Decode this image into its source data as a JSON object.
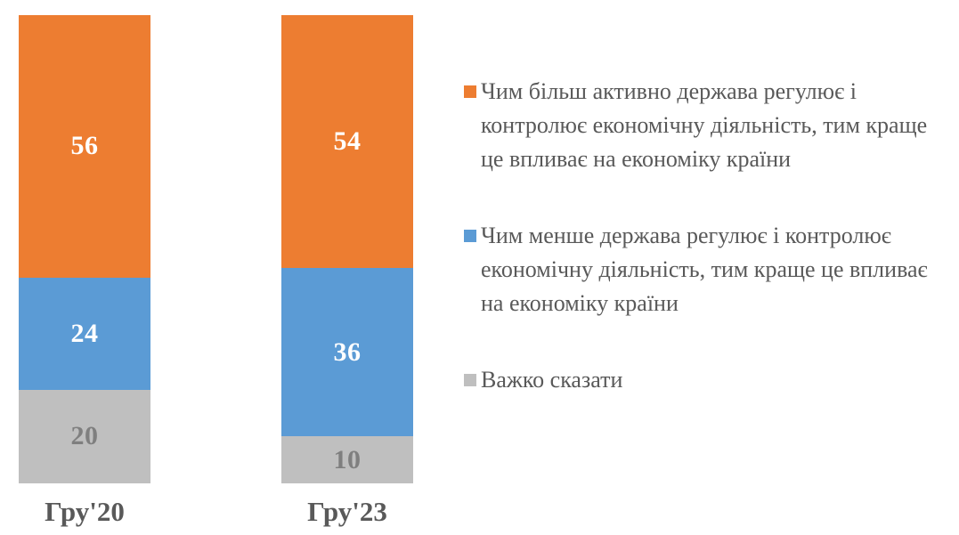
{
  "chart_data": {
    "type": "bar",
    "variant": "stacked-column",
    "title": "",
    "xlabel": "",
    "ylabel": "",
    "ylim": [
      0,
      100
    ],
    "grid": false,
    "axis_lines": false,
    "value_labels": true,
    "legend_position": "right",
    "categories": [
      "Гру'20",
      "Гру'23"
    ],
    "series": [
      {
        "name": "Чим більш активно держава регулює і контролює економічну діяльність, тим краще це впливає на економіку країни",
        "color": "#ED7D31",
        "label_color": "#FFFFFF",
        "values": [
          56,
          54
        ]
      },
      {
        "name": "Чим менше держава регулює і контролює економічну діяльність, тим краще це впливає на економіку країни",
        "color": "#5B9BD5",
        "label_color": "#FFFFFF",
        "values": [
          24,
          36
        ]
      },
      {
        "name": "Важко сказати",
        "color": "#BFBFBF",
        "label_color": "#7F7F7F",
        "values": [
          20,
          10
        ]
      }
    ]
  },
  "styles": {
    "background": "#FFFFFF",
    "text_color": "#595959",
    "category_label_color": "#595959"
  }
}
